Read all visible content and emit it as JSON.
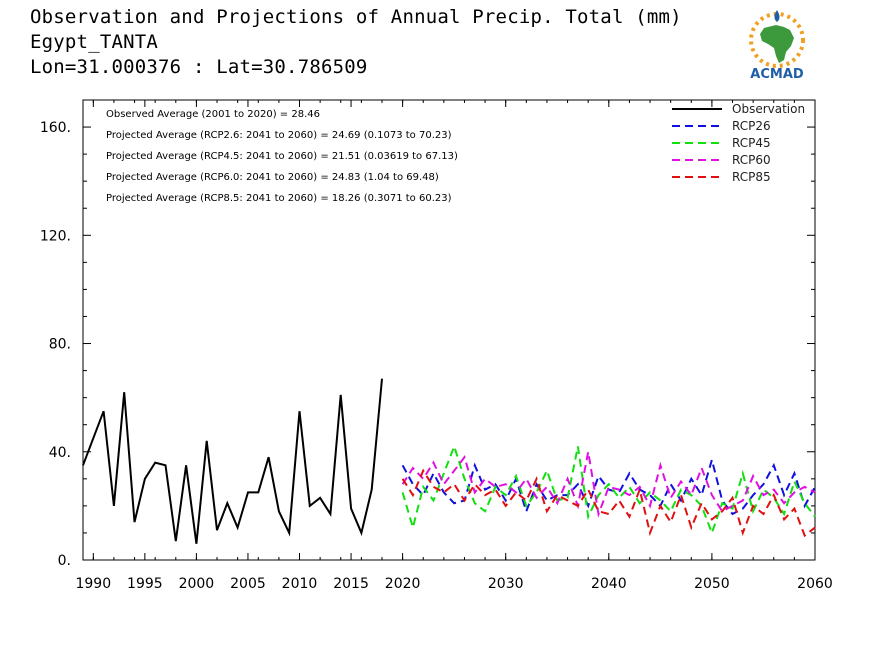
{
  "header": {
    "title": "Observation and Projections of Annual Precip. Total (mm)",
    "station": "Egypt_TANTA",
    "coords": "Lon=31.000376 : Lat=30.786509"
  },
  "logo": {
    "text": "ACMAD",
    "colors": {
      "blue": "#1f5fa8",
      "green": "#3c9a3c",
      "orange": "#f0a020"
    }
  },
  "annotations": [
    "Observed Average (2001 to 2020) = 28.46",
    "Projected Average (RCP2.6: 2041 to 2060) = 24.69 (0.1073 to 70.23)",
    "Projected Average (RCP4.5: 2041 to 2060) = 21.51 (0.03619 to 67.13)",
    "Projected Average (RCP6.0: 2041 to 2060) = 24.83 (1.04 to 69.48)",
    "Projected Average (RCP8.5: 2041 to 2060) = 18.26 (0.3071 to 60.23)"
  ],
  "chart_data": {
    "type": "line",
    "xlim": [
      1989,
      2060
    ],
    "ylim": [
      0,
      170
    ],
    "x_ticks": [
      1990,
      1995,
      2000,
      2005,
      2010,
      2015,
      2020,
      2030,
      2040,
      2050,
      2060
    ],
    "y_ticks": [
      0,
      40,
      80,
      120,
      160
    ],
    "y_tick_labels": [
      "0.",
      "40.",
      "80.",
      "120.",
      "160."
    ],
    "legend_position": "top-right",
    "series": [
      {
        "name": "Observation",
        "color": "#000000",
        "dash": "solid",
        "x": [
          1989,
          1990,
          1991,
          1992,
          1993,
          1994,
          1995,
          1996,
          1997,
          1998,
          1999,
          2000,
          2001,
          2002,
          2003,
          2004,
          2005,
          2006,
          2007,
          2008,
          2009,
          2010,
          2011,
          2012,
          2013,
          2014,
          2015,
          2016,
          2017,
          2018,
          2019,
          2020
        ],
        "y": [
          35,
          45,
          55,
          20,
          62,
          14,
          30,
          36,
          35,
          7,
          35,
          6,
          44,
          11,
          21,
          12,
          25,
          25,
          38,
          18,
          10,
          55,
          20,
          23,
          17,
          61,
          19,
          10,
          26,
          67,
          null,
          null
        ]
      },
      {
        "name": "RCP26",
        "color": "#1010e0",
        "dash": "dashed",
        "x": [
          2020,
          2021,
          2022,
          2023,
          2024,
          2025,
          2026,
          2027,
          2028,
          2029,
          2030,
          2031,
          2032,
          2033,
          2034,
          2035,
          2036,
          2037,
          2038,
          2039,
          2040,
          2041,
          2042,
          2043,
          2044,
          2045,
          2046,
          2047,
          2048,
          2049,
          2050,
          2051,
          2052,
          2053,
          2054,
          2055,
          2056,
          2057,
          2058,
          2059,
          2060
        ],
        "y": [
          35,
          28,
          24,
          32,
          25,
          21,
          22,
          35,
          26,
          28,
          22,
          30,
          18,
          28,
          22,
          24,
          24,
          28,
          20,
          31,
          26,
          25,
          32,
          26,
          24,
          20,
          28,
          22,
          30,
          24,
          37,
          22,
          17,
          19,
          24,
          28,
          35,
          24,
          32,
          20,
          27
        ]
      },
      {
        "name": "RCP45",
        "color": "#10e010",
        "dash": "dashed",
        "x": [
          2020,
          2021,
          2022,
          2023,
          2024,
          2025,
          2026,
          2027,
          2028,
          2029,
          2030,
          2031,
          2032,
          2033,
          2034,
          2035,
          2036,
          2037,
          2038,
          2039,
          2040,
          2041,
          2042,
          2043,
          2044,
          2045,
          2046,
          2047,
          2048,
          2049,
          2050,
          2051,
          2052,
          2053,
          2054,
          2055,
          2056,
          2057,
          2058,
          2059,
          2060
        ],
        "y": [
          25,
          12,
          27,
          22,
          32,
          42,
          30,
          21,
          18,
          27,
          24,
          31,
          20,
          25,
          33,
          22,
          23,
          42,
          16,
          24,
          28,
          23,
          27,
          21,
          25,
          22,
          18,
          26,
          24,
          20,
          10,
          21,
          19,
          32,
          18,
          26,
          23,
          17,
          29,
          21,
          16
        ]
      },
      {
        "name": "RCP60",
        "color": "#e010e0",
        "dash": "dashed",
        "x": [
          2020,
          2021,
          2022,
          2023,
          2024,
          2025,
          2026,
          2027,
          2028,
          2029,
          2030,
          2031,
          2032,
          2033,
          2034,
          2035,
          2036,
          2037,
          2038,
          2039,
          2040,
          2041,
          2042,
          2043,
          2044,
          2045,
          2046,
          2047,
          2048,
          2049,
          2050,
          2051,
          2052,
          2053,
          2054,
          2055,
          2056,
          2057,
          2058,
          2059,
          2060
        ],
        "y": [
          28,
          34,
          30,
          36,
          28,
          33,
          38,
          25,
          30,
          27,
          28,
          25,
          30,
          23,
          27,
          21,
          30,
          20,
          40,
          17,
          27,
          26,
          24,
          27,
          20,
          35,
          23,
          29,
          24,
          34,
          24,
          18,
          20,
          22,
          31,
          24,
          26,
          21,
          25,
          27,
          25
        ]
      },
      {
        "name": "RCP85",
        "color": "#e01010",
        "dash": "dashed",
        "x": [
          2020,
          2021,
          2022,
          2023,
          2024,
          2025,
          2026,
          2027,
          2028,
          2029,
          2030,
          2031,
          2032,
          2033,
          2034,
          2035,
          2036,
          2037,
          2038,
          2039,
          2040,
          2041,
          2042,
          2043,
          2044,
          2045,
          2046,
          2047,
          2048,
          2049,
          2050,
          2051,
          2052,
          2053,
          2054,
          2055,
          2056,
          2057,
          2058,
          2059,
          2060
        ],
        "y": [
          30,
          24,
          33,
          27,
          25,
          28,
          22,
          28,
          24,
          26,
          20,
          25,
          22,
          30,
          18,
          24,
          22,
          20,
          26,
          18,
          17,
          22,
          16,
          26,
          10,
          20,
          14,
          24,
          12,
          21,
          15,
          18,
          23,
          10,
          20,
          17,
          24,
          15,
          19,
          9,
          12
        ]
      }
    ]
  }
}
